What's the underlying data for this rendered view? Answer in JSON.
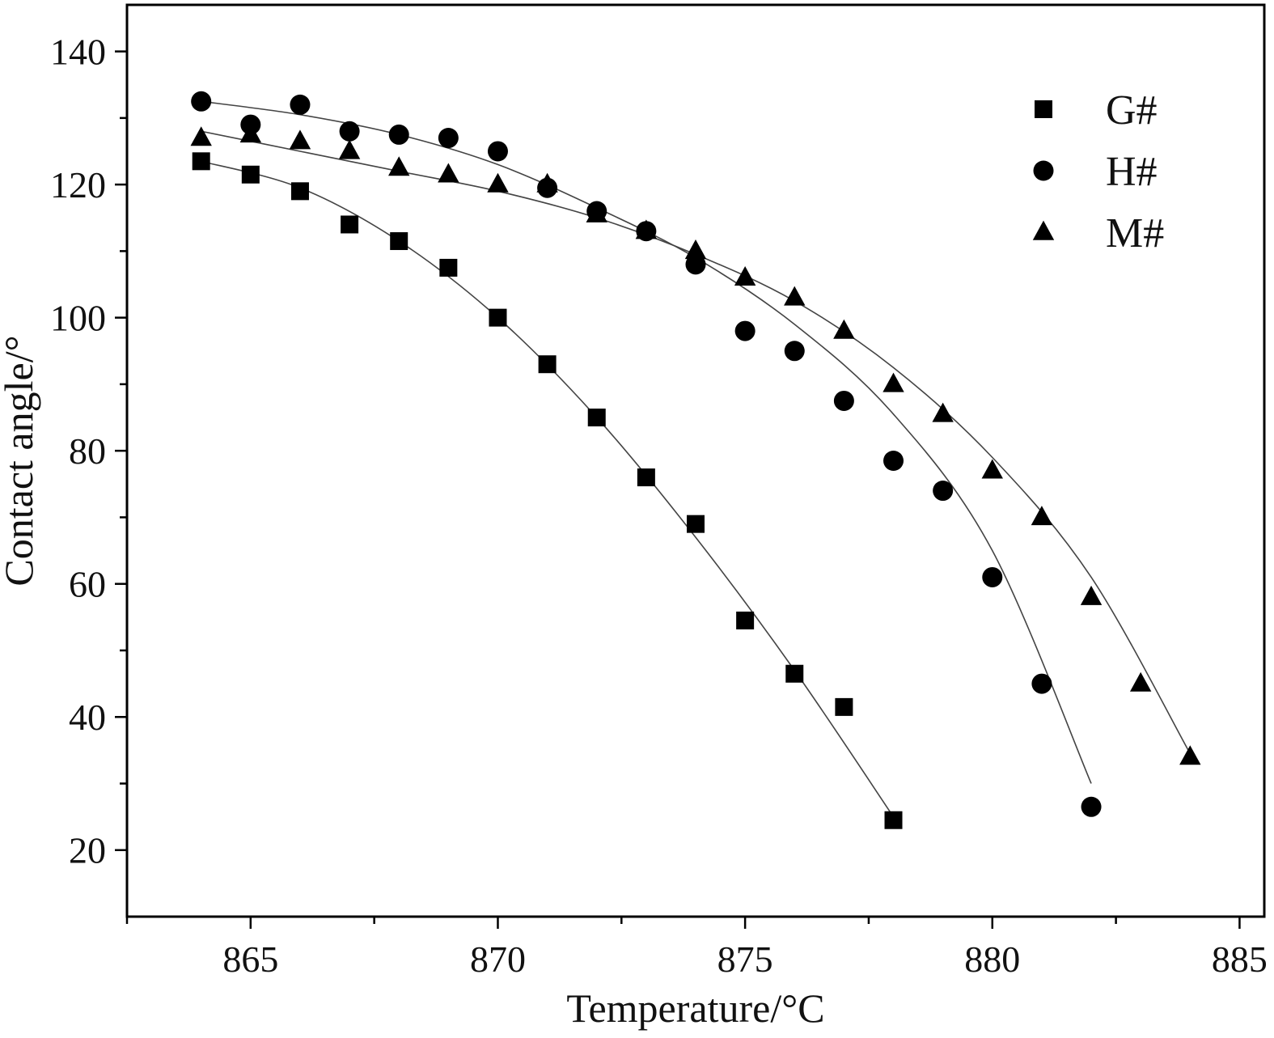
{
  "chart_data": {
    "type": "scatter",
    "title": "",
    "xlabel": "Temperature/°C",
    "ylabel": "Contact angle/°",
    "xlim": [
      862.5,
      885.5
    ],
    "ylim": [
      10,
      147
    ],
    "xticks": [
      865,
      870,
      875,
      880,
      885
    ],
    "yticks": [
      20,
      40,
      60,
      80,
      100,
      120,
      140
    ],
    "grid": false,
    "legend": "top-right",
    "marker_color": "#000000",
    "fit_line_color": "#444444",
    "series": [
      {
        "name": "G#",
        "marker": "square",
        "x": [
          864,
          865,
          866,
          867,
          868,
          869,
          870,
          871,
          872,
          873,
          874,
          875,
          876,
          877,
          878
        ],
        "y": [
          123.5,
          121.5,
          119,
          114,
          111.5,
          107.5,
          100,
          93,
          85,
          76,
          69,
          54.5,
          46.5,
          41.5,
          24.5
        ],
        "fit": {
          "x": [
            864,
            866,
            868,
            870,
            872,
            874,
            876,
            878
          ],
          "y": [
            123.5,
            119.5,
            111.5,
            100,
            85,
            67,
            47,
            25
          ]
        }
      },
      {
        "name": "H#",
        "marker": "circle",
        "x": [
          864,
          865,
          866,
          867,
          868,
          869,
          870,
          871,
          872,
          873,
          874,
          875,
          876,
          877,
          878,
          879,
          880,
          881,
          882
        ],
        "y": [
          132.5,
          129,
          132,
          128,
          127.5,
          127,
          125,
          119.5,
          116,
          113,
          108,
          98,
          95,
          87.5,
          78.5,
          74,
          61,
          45,
          26.5
        ],
        "fit": {
          "x": [
            864,
            866,
            868,
            870,
            872,
            874,
            876,
            878,
            880,
            882
          ],
          "y": [
            132.5,
            130.5,
            127.5,
            123,
            116.5,
            109,
            99,
            85.5,
            65,
            30
          ]
        }
      },
      {
        "name": "M#",
        "marker": "triangle",
        "x": [
          864,
          865,
          866,
          867,
          868,
          869,
          870,
          871,
          872,
          873,
          874,
          875,
          876,
          877,
          878,
          879,
          880,
          881,
          882,
          883,
          884
        ],
        "y": [
          127,
          127.5,
          126.5,
          125,
          122.5,
          121.5,
          120,
          120,
          115.5,
          113,
          110,
          106,
          103,
          98,
          90,
          85.5,
          77,
          70,
          58,
          45,
          34
        ],
        "fit": {
          "x": [
            864,
            866,
            868,
            870,
            872,
            874,
            876,
            878,
            880,
            882,
            884
          ],
          "y": [
            128,
            125,
            122,
            119,
            115,
            109.5,
            102.5,
            92.5,
            79,
            61,
            34.5
          ]
        }
      }
    ]
  }
}
